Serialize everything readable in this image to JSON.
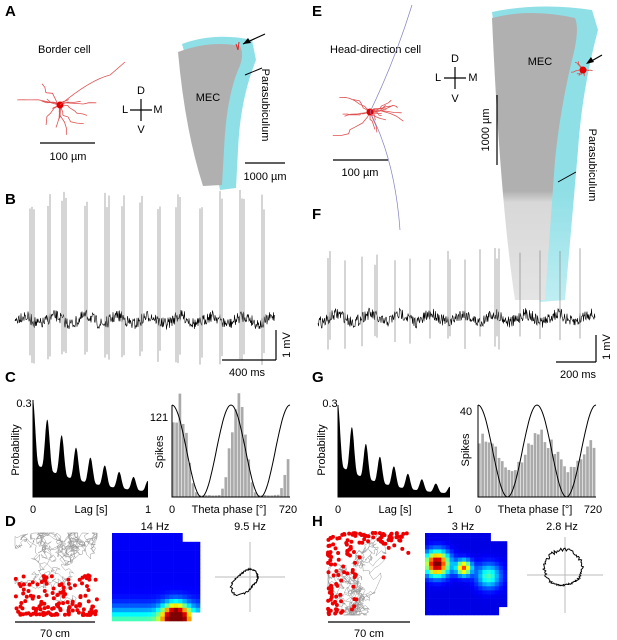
{
  "panels": {
    "A": {
      "label": "A",
      "title": "Border cell",
      "neuron_scale": "100 µm",
      "compass": {
        "d": "D",
        "v": "V",
        "l": "L",
        "m": "M"
      },
      "region": "MEC",
      "area": "Parasubiculum",
      "region_scale": "1000 µm"
    },
    "B": {
      "label": "B",
      "voltage_scale": "1 mV",
      "time_scale": "400 ms"
    },
    "C": {
      "label": "C",
      "autocorr": {
        "ymax": "0.3",
        "ylabel": "Probability",
        "xmin": "0",
        "xlabel": "Lag [s]",
        "xmax": "1"
      },
      "phase": {
        "ymax": "121",
        "ylabel": "Spikes",
        "xmin": "0",
        "xlabel": "Theta phase [°]",
        "xmax": "720"
      }
    },
    "D": {
      "label": "D",
      "rate_peak": "14 Hz",
      "polar_peak": "9.5 Hz",
      "arena_scale": "70 cm"
    },
    "E": {
      "label": "E",
      "title": "Head-direction cell",
      "neuron_scale": "100 µm",
      "compass": {
        "d": "D",
        "v": "V",
        "l": "L",
        "m": "M"
      },
      "region": "MEC",
      "area": "Parasubiculum",
      "region_scale": "1000 µm"
    },
    "F": {
      "label": "F",
      "voltage_scale": "1 mV",
      "time_scale": "200 ms"
    },
    "G": {
      "label": "G",
      "autocorr": {
        "ymax": "0.3",
        "ylabel": "Probability",
        "xmin": "0",
        "xlabel": "Lag [s]",
        "xmax": "1"
      },
      "phase": {
        "ymax": "40",
        "ylabel": "Spikes",
        "xmin": "0",
        "xlabel": "Theta phase [°]",
        "xmax": "720"
      }
    },
    "H": {
      "label": "H",
      "rate_peak": "3 Hz",
      "polar_peak": "2.8 Hz",
      "arena_scale": "70 cm"
    }
  }
}
